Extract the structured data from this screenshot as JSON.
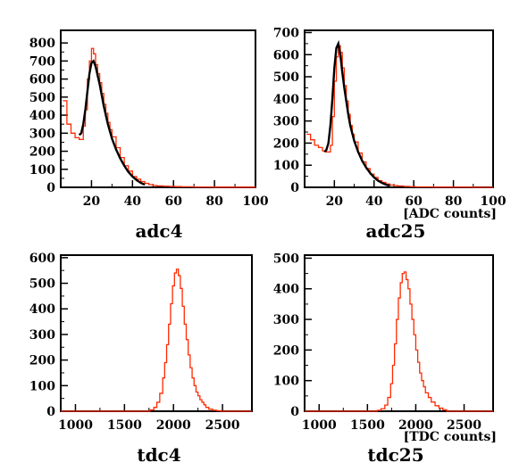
{
  "chart_data": [
    {
      "type": "histogram",
      "title": "adc4",
      "xlabel": "",
      "xlim": [
        5,
        100
      ],
      "ylim": [
        0,
        870
      ],
      "xticks": [
        20,
        40,
        60,
        80,
        100
      ],
      "yticks": [
        0,
        100,
        200,
        300,
        400,
        500,
        600,
        700,
        800
      ],
      "series": [
        {
          "color": "#ff2a00",
          "style": "step",
          "x": [
            6,
            8,
            10,
            12,
            14,
            16,
            17,
            18,
            19,
            20,
            21,
            22,
            23,
            24,
            25,
            26,
            27,
            28,
            29,
            30,
            32,
            34,
            36,
            38,
            40,
            42,
            44,
            46,
            48,
            50,
            52,
            55,
            58,
            61,
            64,
            70,
            80,
            90,
            100
          ],
          "y": [
            480,
            350,
            300,
            275,
            265,
            340,
            430,
            600,
            700,
            770,
            740,
            680,
            630,
            580,
            520,
            460,
            410,
            360,
            320,
            280,
            220,
            165,
            120,
            90,
            60,
            45,
            32,
            22,
            15,
            10,
            8,
            6,
            5,
            4,
            3,
            2,
            1,
            1,
            0
          ]
        },
        {
          "color": "#000000",
          "style": "line",
          "x": [
            14,
            15,
            16,
            17,
            18,
            19,
            20,
            21,
            22,
            23,
            24,
            25,
            26,
            27,
            28,
            30,
            32,
            34,
            36,
            38,
            40,
            42,
            44,
            46
          ],
          "y": [
            290,
            300,
            350,
            430,
            530,
            630,
            690,
            700,
            670,
            620,
            570,
            510,
            450,
            400,
            350,
            270,
            210,
            160,
            120,
            85,
            60,
            40,
            25,
            15
          ]
        }
      ]
    },
    {
      "type": "histogram",
      "title": "adc25",
      "xlabel": "[ADC counts]",
      "xlim": [
        5,
        100
      ],
      "ylim": [
        0,
        710
      ],
      "xticks": [
        20,
        40,
        60,
        80,
        100
      ],
      "yticks": [
        0,
        100,
        200,
        300,
        400,
        500,
        600,
        700
      ],
      "series": [
        {
          "color": "#ff2a00",
          "style": "step",
          "x": [
            6,
            8,
            10,
            12,
            14,
            16,
            18,
            19,
            20,
            21,
            22,
            23,
            24,
            25,
            26,
            27,
            28,
            29,
            30,
            32,
            34,
            36,
            38,
            40,
            42,
            44,
            46,
            48,
            50,
            52,
            55,
            58,
            61,
            64,
            70,
            80,
            90,
            100
          ],
          "y": [
            240,
            215,
            190,
            180,
            165,
            160,
            190,
            320,
            480,
            590,
            640,
            610,
            540,
            460,
            390,
            330,
            280,
            240,
            205,
            155,
            115,
            85,
            60,
            45,
            30,
            22,
            15,
            10,
            8,
            6,
            4,
            3,
            2,
            2,
            1,
            1,
            0,
            0
          ]
        },
        {
          "color": "#000000",
          "style": "line",
          "x": [
            15,
            16,
            17,
            18,
            19,
            20,
            21,
            22,
            23,
            24,
            25,
            26,
            27,
            28,
            30,
            32,
            34,
            36,
            38,
            40,
            42,
            44,
            46,
            48
          ],
          "y": [
            160,
            170,
            200,
            280,
            400,
            540,
            630,
            650,
            600,
            520,
            450,
            390,
            330,
            280,
            210,
            160,
            120,
            90,
            65,
            45,
            30,
            20,
            12,
            7
          ]
        }
      ]
    },
    {
      "type": "histogram",
      "title": "tdc4",
      "xlabel": "",
      "xlim": [
        850,
        2800
      ],
      "ylim": [
        0,
        610
      ],
      "xticks": [
        1000,
        1500,
        2000,
        2500
      ],
      "yticks": [
        0,
        100,
        200,
        300,
        400,
        500,
        600
      ],
      "series": [
        {
          "color": "#ff2a00",
          "style": "step",
          "x": [
            850,
            1700,
            1760,
            1800,
            1830,
            1860,
            1890,
            1910,
            1930,
            1950,
            1970,
            1990,
            2010,
            2030,
            2050,
            2070,
            2090,
            2110,
            2130,
            2150,
            2170,
            2190,
            2210,
            2230,
            2250,
            2270,
            2290,
            2310,
            2330,
            2360,
            2400,
            2440,
            2480,
            2800
          ],
          "y": [
            0,
            0,
            5,
            15,
            35,
            70,
            130,
            190,
            260,
            340,
            420,
            490,
            540,
            555,
            530,
            480,
            410,
            340,
            280,
            220,
            170,
            130,
            100,
            75,
            60,
            45,
            35,
            25,
            15,
            8,
            4,
            2,
            0,
            0
          ]
        }
      ]
    },
    {
      "type": "histogram",
      "title": "tdc25",
      "xlabel": "[TDC counts]",
      "xlim": [
        850,
        2800
      ],
      "ylim": [
        0,
        510
      ],
      "xticks": [
        1000,
        1500,
        2000,
        2500
      ],
      "yticks": [
        0,
        100,
        200,
        300,
        400,
        500
      ],
      "series": [
        {
          "color": "#ff2a00",
          "style": "step",
          "x": [
            850,
            1550,
            1600,
            1640,
            1680,
            1710,
            1740,
            1760,
            1780,
            1800,
            1820,
            1840,
            1860,
            1880,
            1900,
            1920,
            1940,
            1960,
            1980,
            2000,
            2020,
            2040,
            2060,
            2080,
            2100,
            2130,
            2160,
            2200,
            2240,
            2280,
            2320,
            2800
          ],
          "y": [
            0,
            0,
            3,
            8,
            20,
            45,
            90,
            150,
            220,
            300,
            370,
            420,
            450,
            455,
            430,
            400,
            350,
            300,
            250,
            200,
            160,
            125,
            100,
            80,
            60,
            45,
            30,
            18,
            10,
            5,
            0,
            0
          ]
        }
      ]
    }
  ]
}
